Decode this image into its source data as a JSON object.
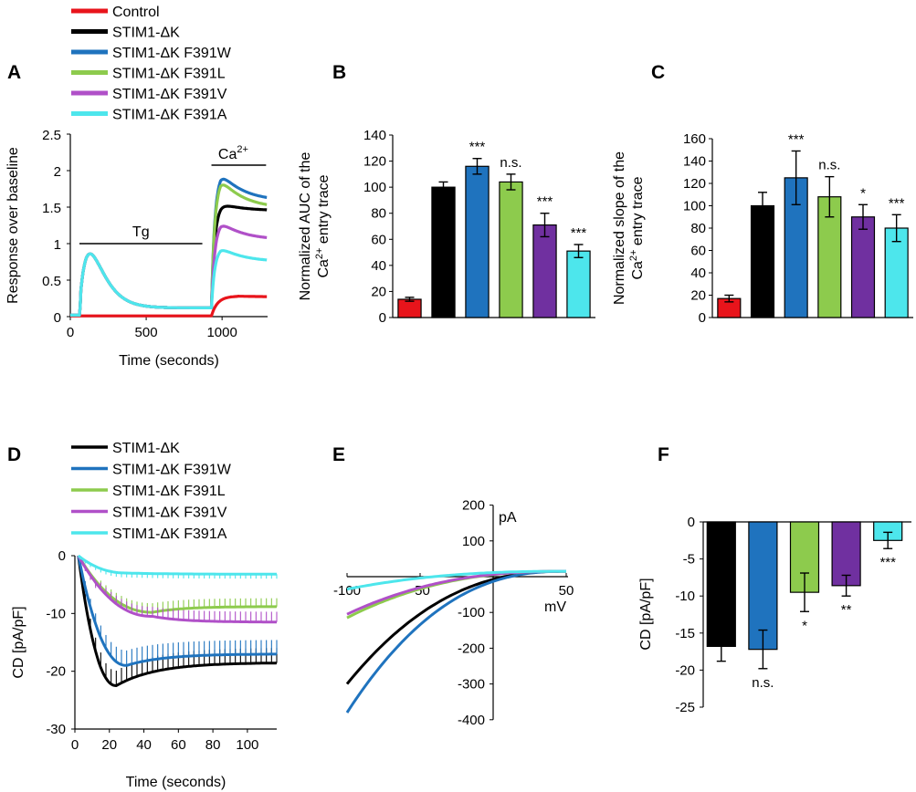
{
  "colors": {
    "control": "#e8141b",
    "dk": "#000000",
    "f391w": "#1f73be",
    "f391l": "#8dcb4d",
    "f391v": "#b050c8",
    "f391v_bar": "#7030a0",
    "f391a": "#4de6ec"
  },
  "legend_top": [
    {
      "label": "Control",
      "color": "#e8141b"
    },
    {
      "label": "STIM1-ΔK",
      "color": "#000000"
    },
    {
      "label": "STIM1-ΔK F391W",
      "color": "#1f73be"
    },
    {
      "label": "STIM1-ΔK F391L",
      "color": "#8dcb4d"
    },
    {
      "label": "STIM1-ΔK F391V",
      "color": "#b050c8"
    },
    {
      "label": "STIM1-ΔK F391A",
      "color": "#4de6ec"
    }
  ],
  "legend_bottom": [
    {
      "label": "STIM1-ΔK",
      "color": "#000000"
    },
    {
      "label": "STIM1-ΔK F391W",
      "color": "#1f73be"
    },
    {
      "label": "STIM1-ΔK F391L",
      "color": "#8dcb4d"
    },
    {
      "label": "STIM1-ΔK F391V",
      "color": "#b050c8"
    },
    {
      "label": "STIM1-ΔK F391A",
      "color": "#4de6ec"
    }
  ],
  "chart_data": [
    {
      "panel": "A",
      "type": "line",
      "xlabel": "Time (seconds)",
      "ylabel": "Response over baseline",
      "xlim": [
        0,
        1300
      ],
      "ylim": [
        0,
        2.5
      ],
      "xticks": [
        "0",
        "500",
        "1000"
      ],
      "yticks": [
        "0",
        "0.5",
        "1",
        "1.5",
        "2",
        "2.5"
      ],
      "annotations": {
        "tg": "Tg",
        "ca": "Ca",
        "ca_sup": "2+"
      },
      "tg_bar": [
        60,
        870
      ],
      "ca_bar": [
        930,
        1290
      ],
      "series": [
        {
          "name": "Control",
          "ca_peak": 0.28,
          "ca_end": 0.27
        },
        {
          "name": "STIM1-ΔK",
          "ca_peak": 1.55,
          "ca_end": 1.45
        },
        {
          "name": "STIM1-ΔK F391W",
          "ca_peak": 1.98,
          "ca_end": 1.58
        },
        {
          "name": "STIM1-ΔK F391L",
          "ca_peak": 1.9,
          "ca_end": 1.48
        },
        {
          "name": "STIM1-ΔK F391V",
          "ca_peak": 1.3,
          "ca_end": 1.05
        },
        {
          "name": "STIM1-ΔK F391A",
          "ca_peak": 0.95,
          "ca_end": 0.75
        }
      ],
      "tg_peak": 0.86,
      "tg_plateau": 0.12
    },
    {
      "panel": "B",
      "type": "bar",
      "ylabel_line1": "Normalized AUC of the",
      "ylabel_line2": "entry trace",
      "ylabel_ca": "Ca",
      "ylabel_sup": "2+",
      "ylim": [
        0,
        140
      ],
      "yticks": [
        "0",
        "20",
        "40",
        "60",
        "80",
        "100",
        "120",
        "140"
      ],
      "categories": [
        "Control",
        "STIM1-ΔK",
        "STIM1-ΔK F391W",
        "STIM1-ΔK F391L",
        "STIM1-ΔK F391V",
        "STIM1-ΔK F391A"
      ],
      "values": [
        14,
        100,
        116,
        104,
        71,
        51
      ],
      "errors": [
        1.5,
        4,
        6,
        6,
        9,
        5
      ],
      "significance": [
        "",
        "",
        "***",
        "n.s.",
        "***",
        "***"
      ]
    },
    {
      "panel": "C",
      "type": "bar",
      "ylabel_line1": "Normalized slope of the",
      "ylabel_line2": "entry trace",
      "ylabel_ca": "Ca",
      "ylabel_sup": "2+",
      "ylim": [
        0,
        160
      ],
      "yticks": [
        "0",
        "20",
        "40",
        "60",
        "80",
        "100",
        "120",
        "140",
        "160"
      ],
      "categories": [
        "Control",
        "STIM1-ΔK",
        "STIM1-ΔK F391W",
        "STIM1-ΔK F391L",
        "STIM1-ΔK F391V",
        "STIM1-ΔK F391A"
      ],
      "values": [
        17,
        100,
        125,
        108,
        90,
        80
      ],
      "errors": [
        3,
        12,
        24,
        18,
        11,
        12
      ],
      "significance": [
        "",
        "",
        "***",
        "n.s.",
        "*",
        "***"
      ]
    },
    {
      "panel": "D",
      "type": "line",
      "xlabel": "Time (seconds)",
      "ylabel": "CD [pA/pF]",
      "xlim": [
        0,
        117
      ],
      "ylim": [
        -30,
        0
      ],
      "xticks": [
        "0",
        "20",
        "40",
        "60",
        "80",
        "100"
      ],
      "yticks": [
        "0",
        "-10",
        "-20",
        "-30"
      ],
      "series": [
        {
          "name": "STIM1-ΔK",
          "peak": -22.5,
          "t_peak": 24,
          "end": -18.5
        },
        {
          "name": "STIM1-ΔK F391W",
          "peak": -19.0,
          "t_peak": 30,
          "end": -17.0
        },
        {
          "name": "STIM1-ΔK F391L",
          "peak": -9.8,
          "t_peak": 45,
          "end": -8.8
        },
        {
          "name": "STIM1-ΔK F391V",
          "peak": -10.5,
          "t_peak": 45,
          "end": -11.5
        },
        {
          "name": "STIM1-ΔK F391A",
          "peak": -3.0,
          "t_peak": 30,
          "end": -3.2
        }
      ]
    },
    {
      "panel": "E",
      "type": "line",
      "xlabel": "mV",
      "ylabel": "pA",
      "xlim": [
        -100,
        50
      ],
      "ylim": [
        -400,
        200
      ],
      "xticks": [
        "-100",
        "-50",
        "50"
      ],
      "yticks": [
        "200",
        "100",
        "-100",
        "-200",
        "-300",
        "-400"
      ],
      "series": [
        {
          "name": "STIM1-ΔK",
          "i_at_minus100": -300
        },
        {
          "name": "STIM1-ΔK F391W",
          "i_at_minus100": -380
        },
        {
          "name": "STIM1-ΔK F391L",
          "i_at_minus100": -115
        },
        {
          "name": "STIM1-ΔK F391V",
          "i_at_minus100": -105
        },
        {
          "name": "STIM1-ΔK F391A",
          "i_at_minus100": -35
        }
      ]
    },
    {
      "panel": "F",
      "type": "bar",
      "ylabel": "CD [pA/pF]",
      "ylim": [
        -25,
        0
      ],
      "yticks": [
        "0",
        "-5",
        "-10",
        "-15",
        "-20",
        "-25"
      ],
      "categories": [
        "STIM1-ΔK",
        "STIM1-ΔK F391W",
        "STIM1-ΔK F391L",
        "STIM1-ΔK F391V",
        "STIM1-ΔK F391A"
      ],
      "values": [
        -16.8,
        -17.2,
        -9.5,
        -8.6,
        -2.5
      ],
      "errors": [
        2.0,
        2.6,
        2.6,
        1.4,
        1.1
      ],
      "significance": [
        "",
        "n.s.",
        "*",
        "**",
        "***"
      ]
    }
  ]
}
